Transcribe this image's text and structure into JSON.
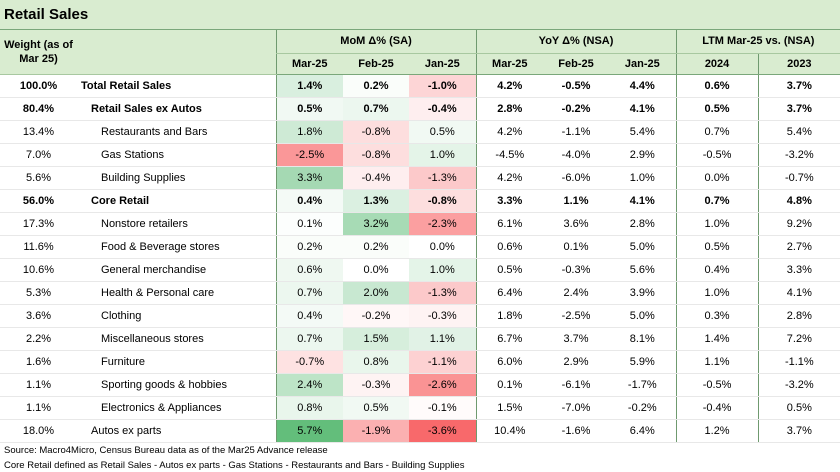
{
  "title": "Retail Sales",
  "headers": {
    "weight": "Weight (as of Mar 25)",
    "mom_group": "MoM Δ% (SA)",
    "yoy_group": "YoY Δ% (NSA)",
    "ltm_group": "LTM Mar-25 vs. (NSA)",
    "sub": [
      "Mar-25",
      "Feb-25",
      "Jan-25",
      "Mar-25",
      "Feb-25",
      "Jan-25",
      "2024",
      "2023"
    ]
  },
  "rows": [
    {
      "weight": "100.0%",
      "name": "Total Retail Sales",
      "level": 0,
      "bold": true,
      "mom": [
        "1.4%",
        "0.2%",
        "-1.0%"
      ],
      "yoy": [
        "4.2%",
        "-0.5%",
        "4.4%"
      ],
      "ltm": [
        "0.6%",
        "3.7%"
      ]
    },
    {
      "weight": "80.4%",
      "name": "Retail Sales ex Autos",
      "level": 1,
      "bold": true,
      "mom": [
        "0.5%",
        "0.7%",
        "-0.4%"
      ],
      "yoy": [
        "2.8%",
        "-0.2%",
        "4.1%"
      ],
      "ltm": [
        "0.5%",
        "3.7%"
      ]
    },
    {
      "weight": "13.4%",
      "name": "Restaurants and Bars",
      "level": 2,
      "bold": false,
      "mom": [
        "1.8%",
        "-0.8%",
        "0.5%"
      ],
      "yoy": [
        "4.2%",
        "-1.1%",
        "5.4%"
      ],
      "ltm": [
        "0.7%",
        "5.4%"
      ]
    },
    {
      "weight": "7.0%",
      "name": "Gas Stations",
      "level": 2,
      "bold": false,
      "mom": [
        "-2.5%",
        "-0.8%",
        "1.0%"
      ],
      "yoy": [
        "-4.5%",
        "-4.0%",
        "2.9%"
      ],
      "ltm": [
        "-0.5%",
        "-3.2%"
      ]
    },
    {
      "weight": "5.6%",
      "name": "Building Supplies",
      "level": 2,
      "bold": false,
      "mom": [
        "3.3%",
        "-0.4%",
        "-1.3%"
      ],
      "yoy": [
        "4.2%",
        "-6.0%",
        "1.0%"
      ],
      "ltm": [
        "0.0%",
        "-0.7%"
      ]
    },
    {
      "weight": "56.0%",
      "name": "Core Retail",
      "level": 1,
      "bold": true,
      "mom": [
        "0.4%",
        "1.3%",
        "-0.8%"
      ],
      "yoy": [
        "3.3%",
        "1.1%",
        "4.1%"
      ],
      "ltm": [
        "0.7%",
        "4.8%"
      ]
    },
    {
      "weight": "17.3%",
      "name": "Nonstore retailers",
      "level": 2,
      "bold": false,
      "mom": [
        "0.1%",
        "3.2%",
        "-2.3%"
      ],
      "yoy": [
        "6.1%",
        "3.6%",
        "2.8%"
      ],
      "ltm": [
        "1.0%",
        "9.2%"
      ]
    },
    {
      "weight": "11.6%",
      "name": "Food & Beverage stores",
      "level": 2,
      "bold": false,
      "mom": [
        "0.2%",
        "0.2%",
        "0.0%"
      ],
      "yoy": [
        "0.6%",
        "0.1%",
        "5.0%"
      ],
      "ltm": [
        "0.5%",
        "2.7%"
      ]
    },
    {
      "weight": "10.6%",
      "name": "General merchandise",
      "level": 2,
      "bold": false,
      "mom": [
        "0.6%",
        "0.0%",
        "1.0%"
      ],
      "yoy": [
        "0.5%",
        "-0.3%",
        "5.6%"
      ],
      "ltm": [
        "0.4%",
        "3.3%"
      ]
    },
    {
      "weight": "5.3%",
      "name": "Health & Personal care",
      "level": 2,
      "bold": false,
      "mom": [
        "0.7%",
        "2.0%",
        "-1.3%"
      ],
      "yoy": [
        "6.4%",
        "2.4%",
        "3.9%"
      ],
      "ltm": [
        "1.0%",
        "4.1%"
      ]
    },
    {
      "weight": "3.6%",
      "name": "Clothing",
      "level": 2,
      "bold": false,
      "mom": [
        "0.4%",
        "-0.2%",
        "-0.3%"
      ],
      "yoy": [
        "1.8%",
        "-2.5%",
        "5.0%"
      ],
      "ltm": [
        "0.3%",
        "2.8%"
      ]
    },
    {
      "weight": "2.2%",
      "name": "Miscellaneous stores",
      "level": 2,
      "bold": false,
      "mom": [
        "0.7%",
        "1.5%",
        "1.1%"
      ],
      "yoy": [
        "6.7%",
        "3.7%",
        "8.1%"
      ],
      "ltm": [
        "1.4%",
        "7.2%"
      ]
    },
    {
      "weight": "1.6%",
      "name": "Furniture",
      "level": 2,
      "bold": false,
      "mom": [
        "-0.7%",
        "0.8%",
        "-1.1%"
      ],
      "yoy": [
        "6.0%",
        "2.9%",
        "5.9%"
      ],
      "ltm": [
        "1.1%",
        "-1.1%"
      ]
    },
    {
      "weight": "1.1%",
      "name": "Sporting goods & hobbies",
      "level": 2,
      "bold": false,
      "mom": [
        "2.4%",
        "-0.3%",
        "-2.6%"
      ],
      "yoy": [
        "0.1%",
        "-6.1%",
        "-1.7%"
      ],
      "ltm": [
        "-0.5%",
        "-3.2%"
      ]
    },
    {
      "weight": "1.1%",
      "name": "Electronics & Appliances",
      "level": 2,
      "bold": false,
      "mom": [
        "0.8%",
        "0.5%",
        "-0.1%"
      ],
      "yoy": [
        "1.5%",
        "-7.0%",
        "-0.2%"
      ],
      "ltm": [
        "-0.4%",
        "0.5%"
      ]
    },
    {
      "weight": "18.0%",
      "name": "Autos ex parts",
      "level": 1,
      "bold": false,
      "mom": [
        "5.7%",
        "-1.9%",
        "-3.6%"
      ],
      "yoy": [
        "10.4%",
        "-1.6%",
        "6.4%"
      ],
      "ltm": [
        "1.2%",
        "3.7%"
      ]
    }
  ],
  "colors": {
    "green_strong": "#63be7b",
    "red_strong": "#f8696b",
    "header_bg": "#d9ecd0"
  },
  "footer": {
    "source": "Source: Macro4Micro, Census Bureau    data as of the Mar25 Advance release",
    "note": "Core Retail defined as Retail Sales - Autos ex parts - Gas Stations - Restaurants and Bars - Building Supplies"
  }
}
